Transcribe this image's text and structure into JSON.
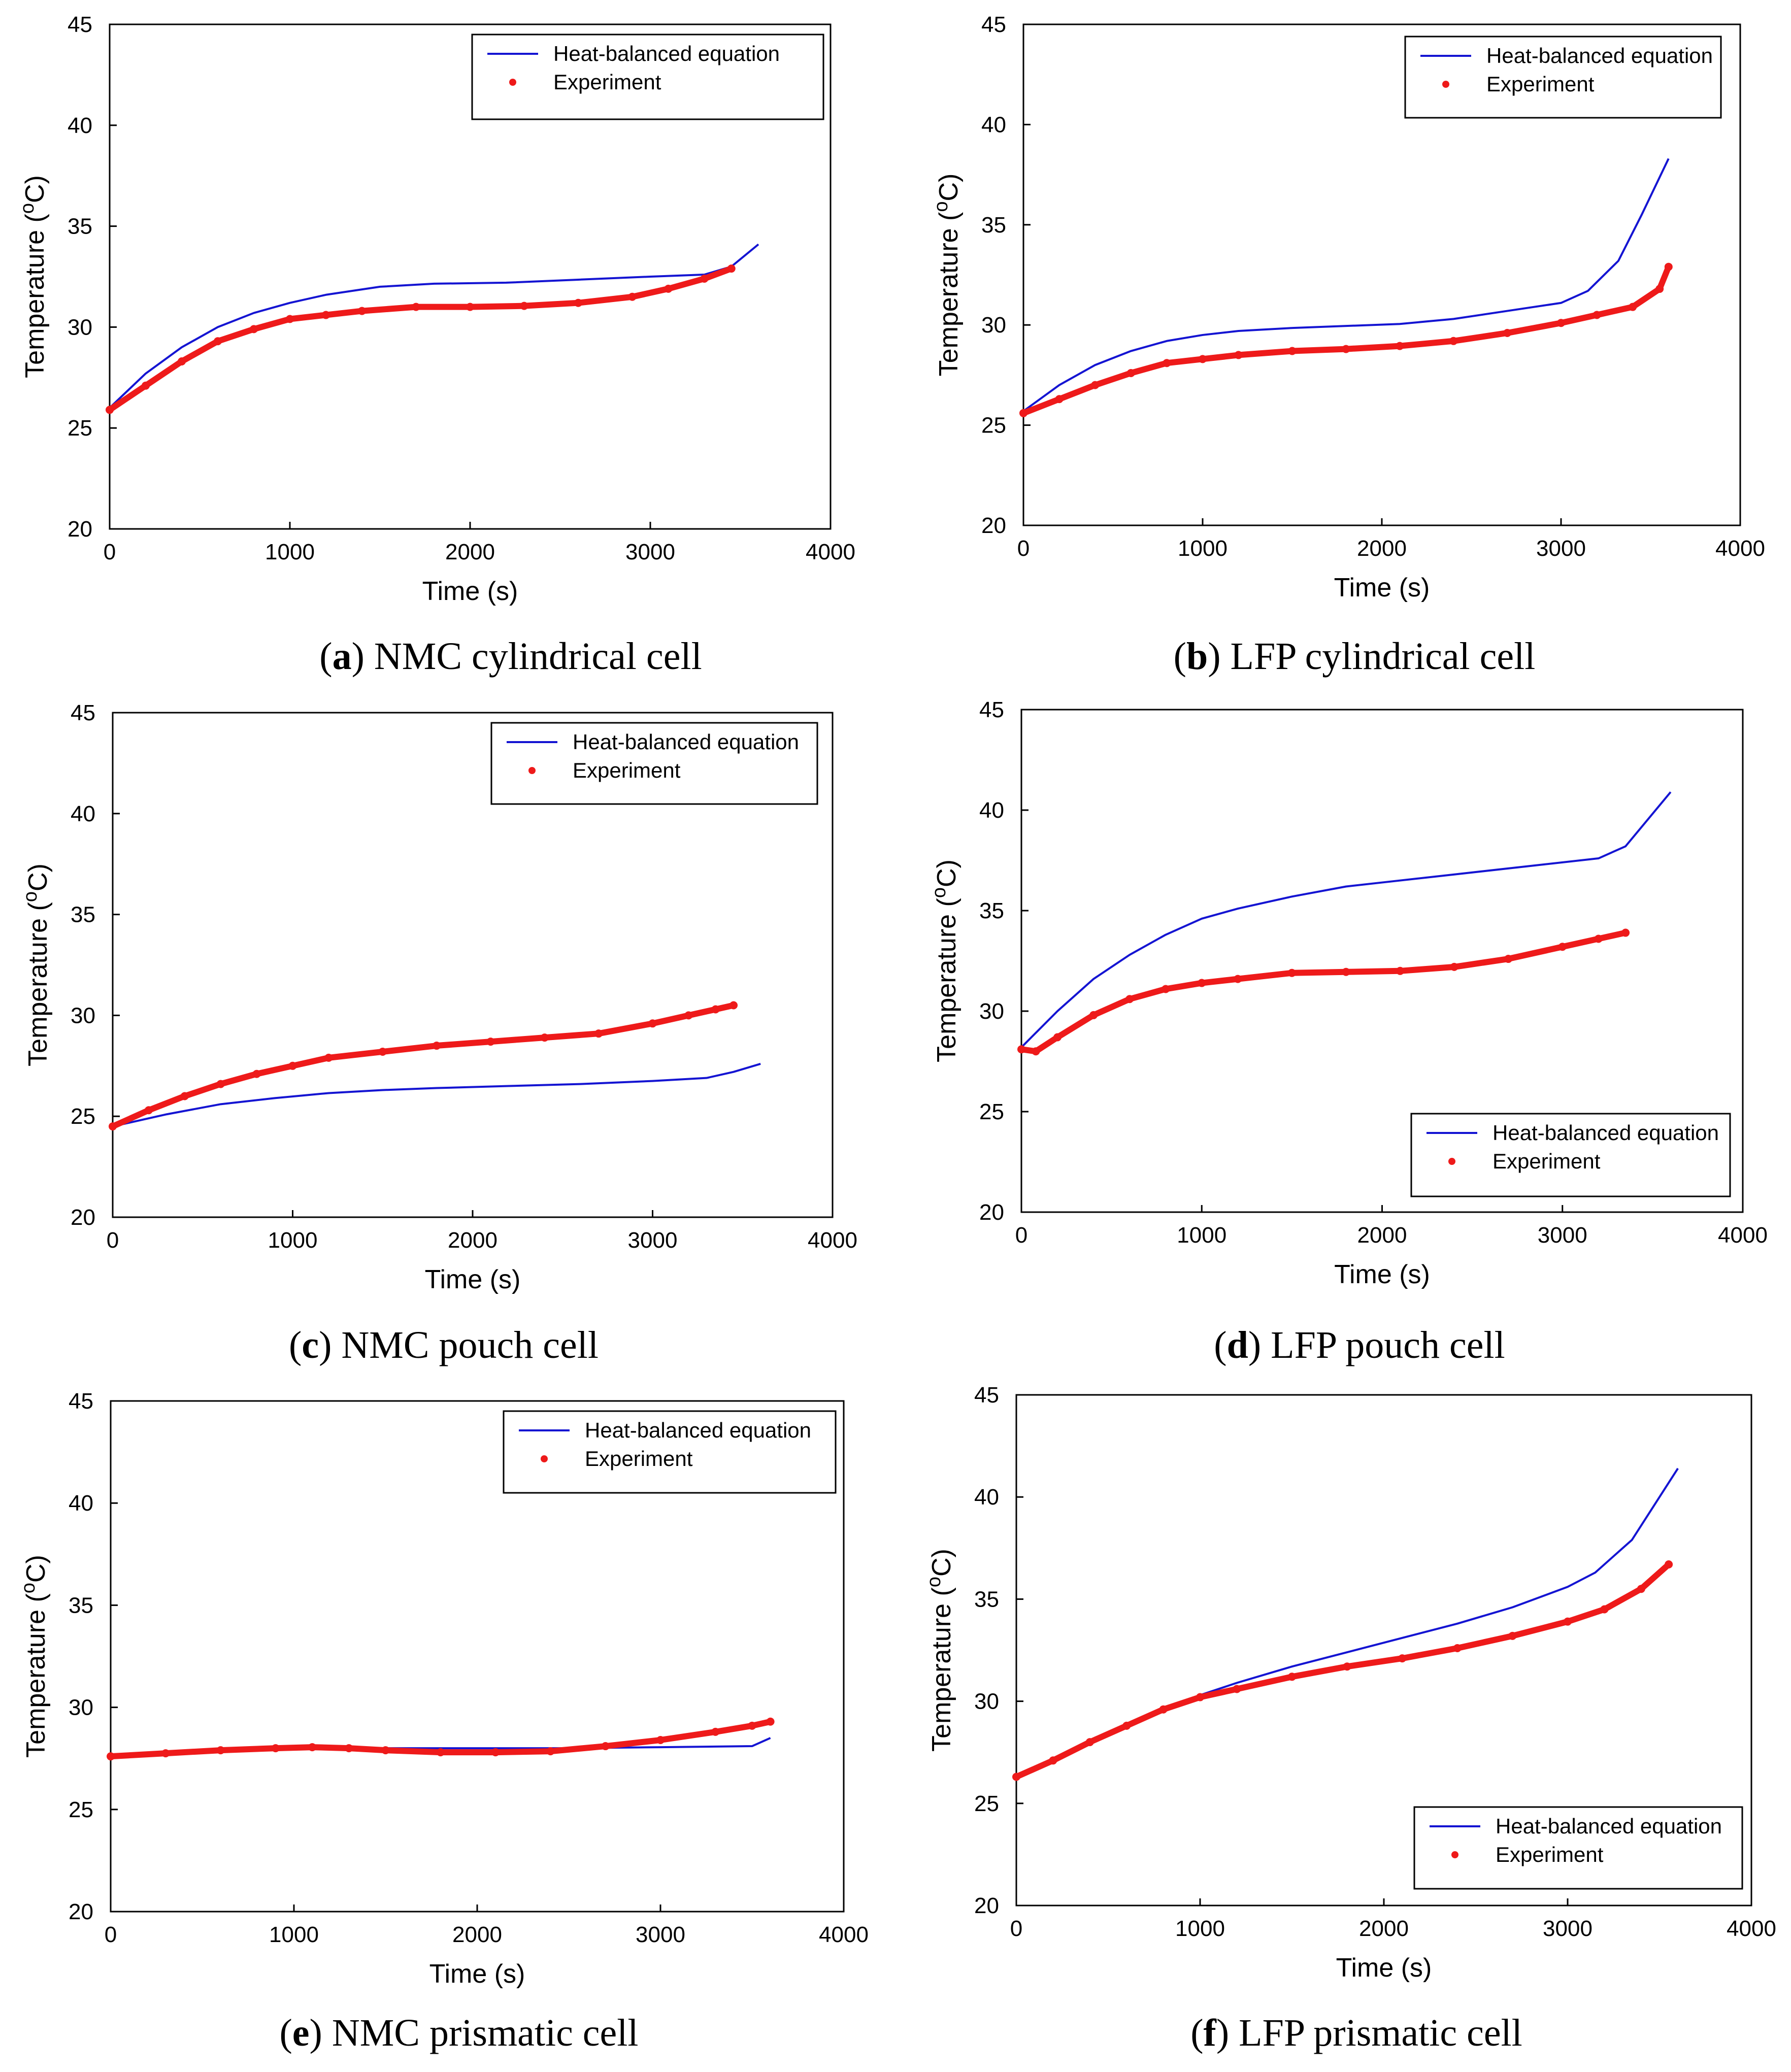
{
  "figure": {
    "series_names": [
      "Heat-balanced equation",
      "Experiment"
    ],
    "colors": {
      "model": "#1414d2",
      "experiment": "#ee1a1a",
      "axis": "#000000"
    }
  },
  "chart_data": [
    {
      "id": "a",
      "type": "line",
      "caption_letter": "a",
      "caption_text": "NMC cylindrical cell",
      "xlabel": "Time (s)",
      "ylabel_text": "Temperature (",
      "ylabel_sup": "o",
      "ylabel_unit": "C)",
      "xlim": [
        0,
        4000
      ],
      "ylim": [
        20,
        45
      ],
      "xticks": [
        "0",
        "1000",
        "2000",
        "3000",
        "4000"
      ],
      "yticks": [
        "20",
        "25",
        "30",
        "35",
        "40",
        "45"
      ],
      "legend_position": "top-right",
      "series": [
        {
          "name": "Heat-balanced equation",
          "style": "line",
          "x": [
            0,
            200,
            400,
            600,
            800,
            1000,
            1200,
            1500,
            1800,
            2200,
            2600,
            3000,
            3300,
            3450,
            3600
          ],
          "y": [
            26.0,
            27.7,
            29.0,
            30.0,
            30.7,
            31.2,
            31.6,
            32.0,
            32.15,
            32.2,
            32.35,
            32.5,
            32.6,
            33.0,
            34.1
          ]
        },
        {
          "name": "Experiment",
          "style": "points",
          "x": [
            0,
            200,
            400,
            600,
            800,
            1000,
            1200,
            1400,
            1700,
            2000,
            2300,
            2600,
            2900,
            3100,
            3300,
            3450
          ],
          "y": [
            25.9,
            27.1,
            28.3,
            29.3,
            29.9,
            30.4,
            30.6,
            30.8,
            31.0,
            31.0,
            31.05,
            31.2,
            31.5,
            31.9,
            32.4,
            32.9
          ]
        }
      ]
    },
    {
      "id": "b",
      "type": "line",
      "caption_letter": "b",
      "caption_text": "LFP cylindrical cell",
      "xlabel": "Time (s)",
      "ylabel_text": "Temperature (",
      "ylabel_sup": "o",
      "ylabel_unit": "C)",
      "xlim": [
        0,
        4000
      ],
      "ylim": [
        20,
        45
      ],
      "xticks": [
        "0",
        "1000",
        "2000",
        "3000",
        "4000"
      ],
      "yticks": [
        "20",
        "25",
        "30",
        "35",
        "40",
        "45"
      ],
      "legend_position": "top-right",
      "series": [
        {
          "name": "Heat-balanced equation",
          "style": "line",
          "x": [
            0,
            200,
            400,
            600,
            800,
            1000,
            1200,
            1500,
            1800,
            2100,
            2400,
            2700,
            3000,
            3150,
            3320,
            3450,
            3600
          ],
          "y": [
            25.7,
            27.0,
            28.0,
            28.7,
            29.2,
            29.5,
            29.7,
            29.85,
            29.95,
            30.05,
            30.3,
            30.7,
            31.1,
            31.7,
            33.2,
            35.5,
            38.3
          ]
        },
        {
          "name": "Experiment",
          "style": "points",
          "x": [
            0,
            200,
            400,
            600,
            800,
            1000,
            1200,
            1500,
            1800,
            2100,
            2400,
            2700,
            3000,
            3200,
            3400,
            3550,
            3600
          ],
          "y": [
            25.6,
            26.3,
            27.0,
            27.6,
            28.1,
            28.3,
            28.5,
            28.7,
            28.8,
            28.95,
            29.2,
            29.6,
            30.1,
            30.5,
            30.9,
            31.8,
            32.9
          ]
        }
      ]
    },
    {
      "id": "c",
      "type": "line",
      "caption_letter": "c",
      "caption_text": "NMC pouch cell",
      "xlabel": "Time (s)",
      "ylabel_text": "Temperature (",
      "ylabel_sup": "o",
      "ylabel_unit": "C)",
      "xlim": [
        0,
        4000
      ],
      "ylim": [
        20,
        45
      ],
      "xticks": [
        "0",
        "1000",
        "2000",
        "3000",
        "4000"
      ],
      "yticks": [
        "20",
        "25",
        "30",
        "35",
        "40",
        "45"
      ],
      "legend_position": "top-right",
      "series": [
        {
          "name": "Heat-balanced equation",
          "style": "line",
          "x": [
            0,
            300,
            600,
            900,
            1200,
            1500,
            1800,
            2200,
            2600,
            3000,
            3300,
            3450,
            3600
          ],
          "y": [
            24.5,
            25.1,
            25.6,
            25.9,
            26.15,
            26.3,
            26.4,
            26.5,
            26.6,
            26.75,
            26.9,
            27.2,
            27.6
          ]
        },
        {
          "name": "Experiment",
          "style": "points",
          "x": [
            0,
            200,
            400,
            600,
            800,
            1000,
            1200,
            1500,
            1800,
            2100,
            2400,
            2700,
            3000,
            3200,
            3350,
            3450
          ],
          "y": [
            24.5,
            25.3,
            26.0,
            26.6,
            27.1,
            27.5,
            27.9,
            28.2,
            28.5,
            28.7,
            28.9,
            29.1,
            29.6,
            30.0,
            30.3,
            30.5
          ]
        }
      ]
    },
    {
      "id": "d",
      "type": "line",
      "caption_letter": "d",
      "caption_text": "LFP pouch cell",
      "xlabel": "Time (s)",
      "ylabel_text": "Temperature (",
      "ylabel_sup": "o",
      "ylabel_unit": "C)",
      "xlim": [
        0,
        4000
      ],
      "ylim": [
        20,
        45
      ],
      "xticks": [
        "0",
        "1000",
        "2000",
        "3000",
        "4000"
      ],
      "yticks": [
        "20",
        "25",
        "30",
        "35",
        "40",
        "45"
      ],
      "legend_position": "bottom-right",
      "series": [
        {
          "name": "Heat-balanced equation",
          "style": "line",
          "x": [
            0,
            200,
            400,
            600,
            800,
            1000,
            1200,
            1500,
            1800,
            2000,
            2400,
            2800,
            3200,
            3350,
            3600
          ],
          "y": [
            28.2,
            30.0,
            31.6,
            32.8,
            33.8,
            34.6,
            35.1,
            35.7,
            36.2,
            36.4,
            36.8,
            37.2,
            37.6,
            38.2,
            40.9
          ]
        },
        {
          "name": "Experiment",
          "style": "points",
          "x": [
            0,
            80,
            200,
            400,
            600,
            800,
            1000,
            1200,
            1500,
            1800,
            2100,
            2400,
            2700,
            3000,
            3200,
            3350
          ],
          "y": [
            28.1,
            28.0,
            28.7,
            29.8,
            30.6,
            31.1,
            31.4,
            31.6,
            31.9,
            31.95,
            32.0,
            32.2,
            32.6,
            33.2,
            33.6,
            33.9
          ]
        }
      ]
    },
    {
      "id": "e",
      "type": "line",
      "caption_letter": "e",
      "caption_text": "NMC prismatic cell",
      "xlabel": "Time (s)",
      "ylabel_text": "Temperature (",
      "ylabel_sup": "o",
      "ylabel_unit": "C)",
      "xlim": [
        0,
        4000
      ],
      "ylim": [
        20,
        45
      ],
      "xticks": [
        "0",
        "1000",
        "2000",
        "3000",
        "4000"
      ],
      "yticks": [
        "20",
        "25",
        "30",
        "35",
        "40",
        "45"
      ],
      "legend_position": "top-right",
      "series": [
        {
          "name": "Heat-balanced equation",
          "style": "line",
          "x": [
            0,
            500,
            1000,
            1500,
            2000,
            2500,
            3000,
            3500,
            3600
          ],
          "y": [
            27.6,
            27.85,
            27.95,
            28.0,
            28.0,
            28.0,
            28.05,
            28.1,
            28.5
          ]
        },
        {
          "name": "Experiment",
          "style": "points",
          "x": [
            0,
            300,
            600,
            900,
            1100,
            1300,
            1500,
            1800,
            2100,
            2400,
            2700,
            3000,
            3300,
            3500,
            3600
          ],
          "y": [
            27.6,
            27.75,
            27.9,
            28.0,
            28.05,
            28.0,
            27.9,
            27.8,
            27.8,
            27.85,
            28.1,
            28.4,
            28.8,
            29.1,
            29.3
          ]
        }
      ]
    },
    {
      "id": "f",
      "type": "line",
      "caption_letter": "f",
      "caption_text": "LFP prismatic cell",
      "xlabel": "Time (s)",
      "ylabel_text": "Temperature (",
      "ylabel_sup": "o",
      "ylabel_unit": "C)",
      "xlim": [
        0,
        4000
      ],
      "ylim": [
        20,
        45
      ],
      "xticks": [
        "0",
        "1000",
        "2000",
        "3000",
        "4000"
      ],
      "yticks": [
        "20",
        "25",
        "30",
        "35",
        "40",
        "45"
      ],
      "legend_position": "bottom-right",
      "series": [
        {
          "name": "Heat-balanced equation",
          "style": "line",
          "x": [
            0,
            200,
            400,
            600,
            800,
            1000,
            1200,
            1500,
            1800,
            2100,
            2400,
            2700,
            3000,
            3150,
            3350,
            3600
          ],
          "y": [
            26.3,
            27.1,
            28.0,
            28.8,
            29.6,
            30.3,
            30.9,
            31.7,
            32.4,
            33.1,
            33.8,
            34.6,
            35.6,
            36.3,
            37.9,
            41.4
          ]
        },
        {
          "name": "Experiment",
          "style": "points",
          "x": [
            0,
            200,
            400,
            600,
            800,
            1000,
            1200,
            1500,
            1800,
            2100,
            2400,
            2700,
            3000,
            3200,
            3400,
            3550
          ],
          "y": [
            26.3,
            27.1,
            28.0,
            28.8,
            29.6,
            30.2,
            30.6,
            31.2,
            31.7,
            32.1,
            32.6,
            33.2,
            33.9,
            34.5,
            35.5,
            36.7
          ]
        }
      ]
    }
  ]
}
